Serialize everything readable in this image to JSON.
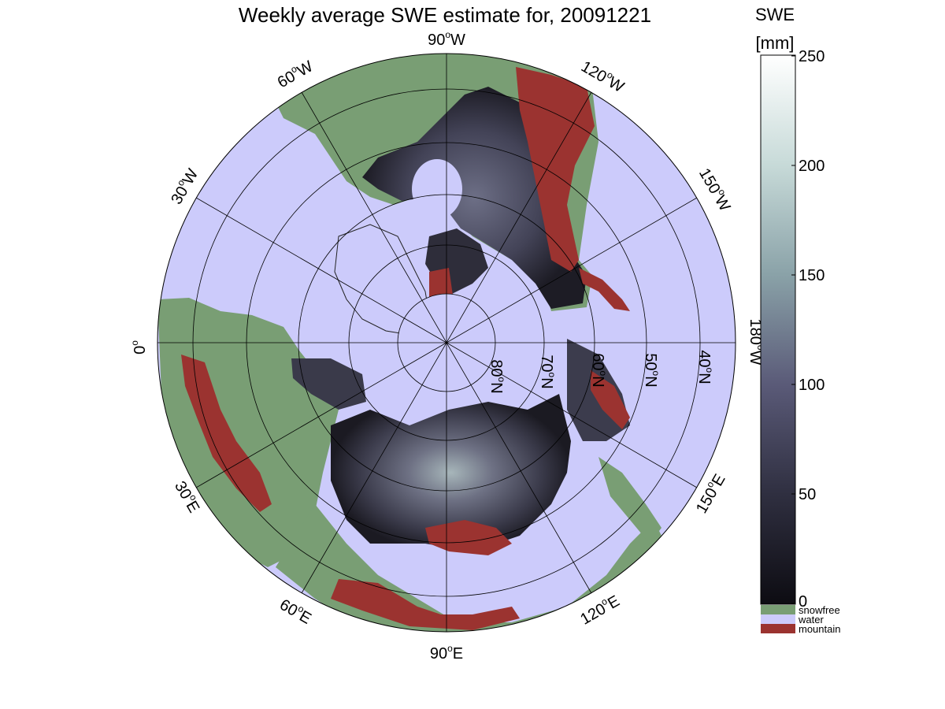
{
  "title": "Weekly average SWE estimate for, 20091221",
  "colorbar": {
    "label_line1": "SWE",
    "label_line2": "[mm]",
    "range": [
      0,
      250
    ],
    "ticks": [
      "0",
      "50",
      "100",
      "150",
      "200",
      "250"
    ],
    "gradient": [
      "#0d0c12",
      "#2f2f40",
      "#5a5a78",
      "#8aa2a8",
      "#c7dad8",
      "#ffffff"
    ],
    "categories": [
      {
        "name": "snowfree",
        "color": "#799e74"
      },
      {
        "name": "water",
        "color": "#cccbfb"
      },
      {
        "name": "mountain",
        "color": "#9b3330"
      }
    ]
  },
  "map": {
    "projection": "north polar stereographic",
    "colors": {
      "water": "#cccbfb",
      "snowfree": "#799e74",
      "mountain": "#9b3330",
      "snow_low": "#26252f",
      "snow_mid": "#4c4c62",
      "snow_high": "#8f9aa6"
    },
    "longitude_labels": {
      "w90": "90",
      "w90_unit": "W",
      "w60": "60",
      "w60_unit": "W",
      "w30": "30",
      "w30_unit": "W",
      "w120": "120",
      "w120_unit": "W",
      "w150": "150",
      "w150_unit": "W",
      "w180": "180",
      "w180_unit": "W",
      "zero": "0",
      "e30": "30",
      "e30_unit": "E",
      "e60": "60",
      "e60_unit": "E",
      "e90": "90",
      "e90_unit": "E",
      "e120": "120",
      "e120_unit": "E",
      "e150": "150",
      "e150_unit": "E",
      "degree": "o"
    },
    "latitude_labels": {
      "n80": "80",
      "n70": "70",
      "n60": "60",
      "n50": "50",
      "n40": "40",
      "unit": "N",
      "degree": "o"
    }
  }
}
